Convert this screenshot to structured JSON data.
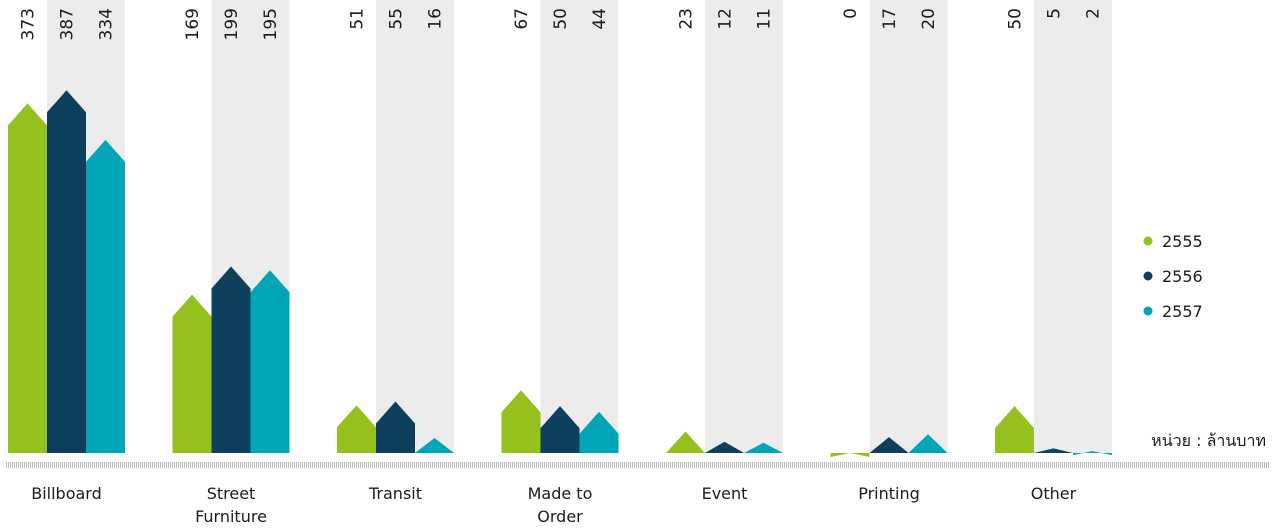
{
  "chart_data": {
    "type": "bar",
    "categories": [
      "Billboard",
      "Street Furniture",
      "Transit",
      "Made to Order",
      "Event",
      "Printing",
      "Other"
    ],
    "category_lines": [
      [
        "Billboard"
      ],
      [
        "Street",
        "Furniture"
      ],
      [
        "Transit"
      ],
      [
        "Made to",
        "Order"
      ],
      [
        "Event"
      ],
      [
        "Printing"
      ],
      [
        "Other"
      ]
    ],
    "series": [
      {
        "name": "2555",
        "values": [
          373,
          169,
          51,
          67,
          23,
          0,
          50
        ]
      },
      {
        "name": "2556",
        "values": [
          387,
          199,
          55,
          50,
          12,
          17,
          5
        ]
      },
      {
        "name": "2557",
        "values": [
          334,
          195,
          16,
          44,
          11,
          20,
          2
        ]
      }
    ],
    "colors": [
      "#95c11f",
      "#0e3f5c",
      "#00a5b8"
    ],
    "panel_color": "#ececec",
    "baseline_color": "#b8b8b8",
    "unit_label": "หน่วย : ล้านบาท",
    "legend_position": "right",
    "ylim": [
      0,
      400
    ]
  }
}
